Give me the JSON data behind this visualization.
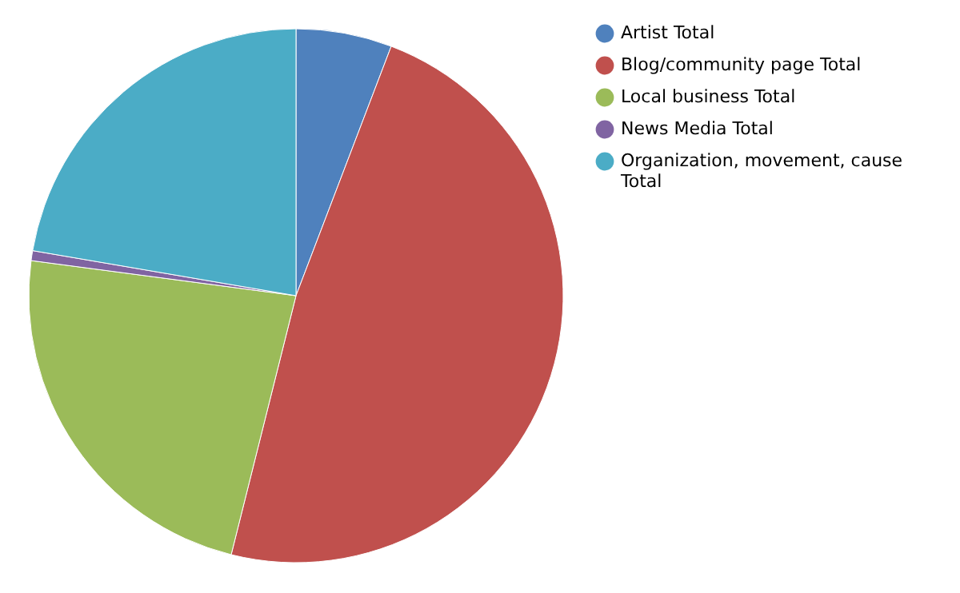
{
  "chart_data": {
    "type": "pie",
    "categories": [
      "Artist Total",
      "Blog/community page Total",
      "Local business Total",
      "News Media Total",
      "Organization, movement, cause Total"
    ],
    "values": [
      5.8,
      48.1,
      23.2,
      0.6,
      22.3
    ],
    "colors": [
      "#4f81bd",
      "#c0504d",
      "#9bbb59",
      "#8064a2",
      "#4bacc6"
    ],
    "legend": "top right"
  }
}
